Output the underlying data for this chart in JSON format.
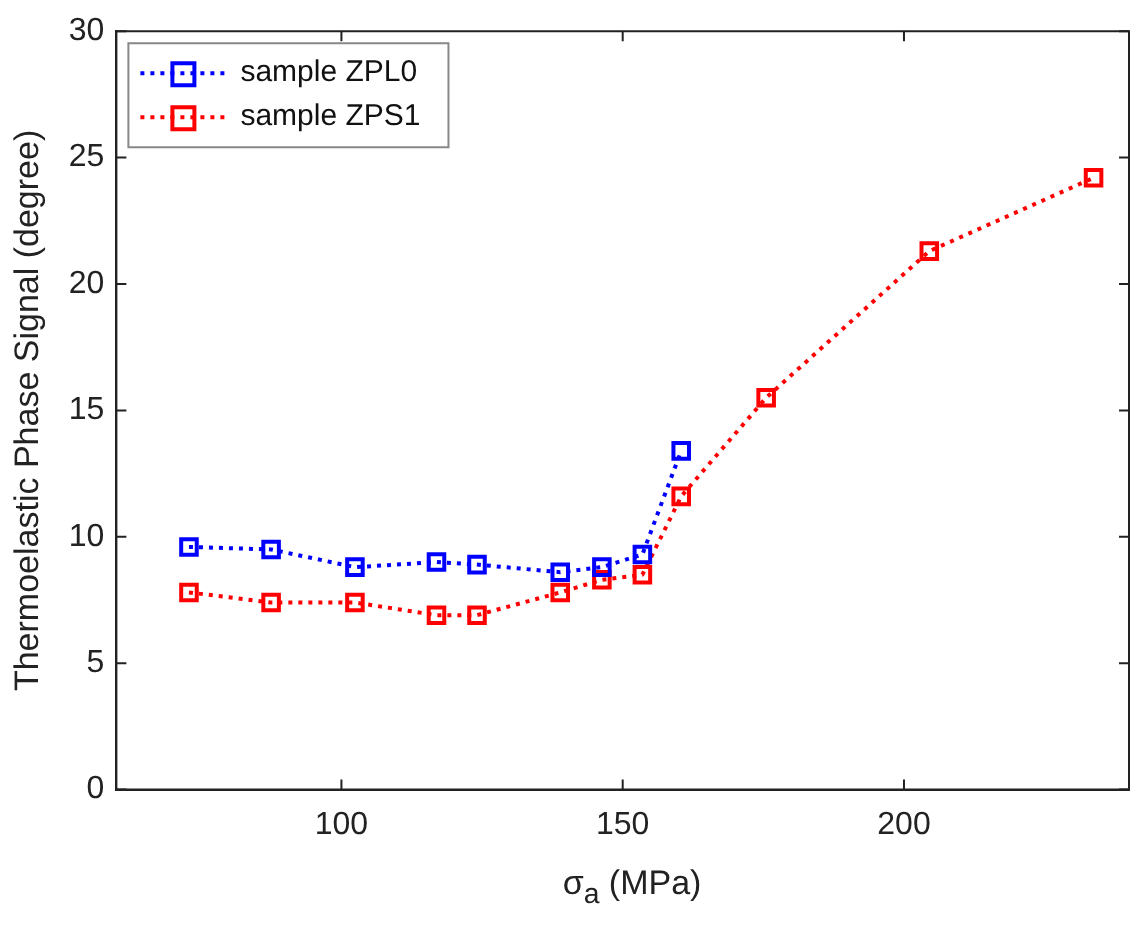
{
  "chart_data": {
    "type": "line",
    "xlabel": "σ$_{a}$ (MPa)",
    "ylabel": "Thermoelastic Phase Signal (degree)",
    "xlim": [
      60,
      240
    ],
    "xticks": [
      100,
      150,
      200
    ],
    "ylim": [
      0,
      30
    ],
    "yticks": [
      0,
      5,
      10,
      15,
      20,
      25,
      30
    ],
    "grid": false,
    "legend": "top left",
    "marker": "square",
    "line_style": "dotted",
    "series": [
      {
        "name": "sample ZPL0",
        "color": "#0000ff",
        "x": [
          72.9,
          87.5,
          102.4,
          116.9,
          124.1,
          138.9,
          146.3,
          153.5,
          160.4
        ],
        "values": [
          9.6,
          9.5,
          8.8,
          9.0,
          8.9,
          8.6,
          8.8,
          9.3,
          13.4
        ]
      },
      {
        "name": "sample ZPS1",
        "color": "#ff0000",
        "x": [
          72.9,
          87.5,
          102.4,
          116.9,
          124.1,
          138.9,
          146.3,
          153.5,
          160.4,
          175.5,
          204.5,
          233.7
        ],
        "values": [
          7.8,
          7.4,
          7.4,
          6.9,
          6.9,
          7.8,
          8.3,
          8.5,
          11.6,
          15.5,
          21.3,
          24.2
        ]
      }
    ]
  }
}
